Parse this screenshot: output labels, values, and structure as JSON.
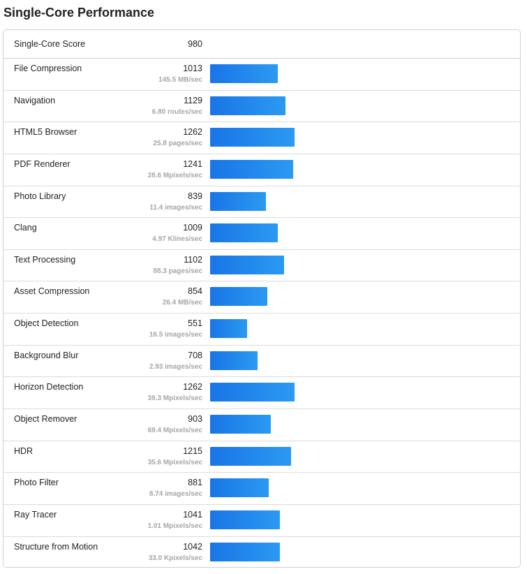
{
  "page": {
    "title": "Single-Core Performance"
  },
  "summary": {
    "label": "Single-Core Score",
    "value": "980"
  },
  "scale_max": 1262,
  "colors": {
    "bar_start": "#1875e6",
    "bar_end": "#2b9af2"
  },
  "benchmarks": [
    {
      "name": "File Compression",
      "score": 1013,
      "rate": "145.5 MB/sec"
    },
    {
      "name": "Navigation",
      "score": 1129,
      "rate": "6.80 routes/sec"
    },
    {
      "name": "HTML5 Browser",
      "score": 1262,
      "rate": "25.8 pages/sec"
    },
    {
      "name": "PDF Renderer",
      "score": 1241,
      "rate": "28.6 Mpixels/sec"
    },
    {
      "name": "Photo Library",
      "score": 839,
      "rate": "11.4 images/sec"
    },
    {
      "name": "Clang",
      "score": 1009,
      "rate": "4.97 Klines/sec"
    },
    {
      "name": "Text Processing",
      "score": 1102,
      "rate": "88.3 pages/sec"
    },
    {
      "name": "Asset Compression",
      "score": 854,
      "rate": "26.4 MB/sec"
    },
    {
      "name": "Object Detection",
      "score": 551,
      "rate": "16.5 images/sec"
    },
    {
      "name": "Background Blur",
      "score": 708,
      "rate": "2.93 images/sec"
    },
    {
      "name": "Horizon Detection",
      "score": 1262,
      "rate": "39.3 Mpixels/sec"
    },
    {
      "name": "Object Remover",
      "score": 903,
      "rate": "69.4 Mpixels/sec"
    },
    {
      "name": "HDR",
      "score": 1215,
      "rate": "35.6 Mpixels/sec"
    },
    {
      "name": "Photo Filter",
      "score": 881,
      "rate": "8.74 images/sec"
    },
    {
      "name": "Ray Tracer",
      "score": 1041,
      "rate": "1.01 Mpixels/sec"
    },
    {
      "name": "Structure from Motion",
      "score": 1042,
      "rate": "33.0 Kpixels/sec"
    }
  ]
}
